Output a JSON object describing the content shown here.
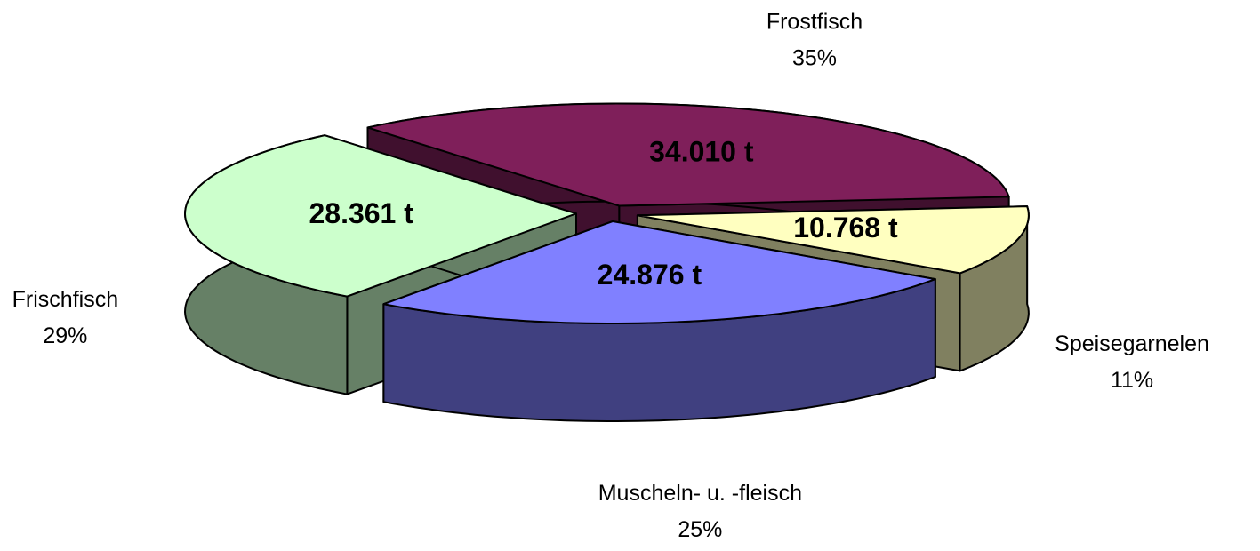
{
  "chart_data": {
    "type": "pie3d",
    "categories": [
      "Frostfisch",
      "Speisegarnelen",
      "Muscheln- u. -fleisch",
      "Frischfisch"
    ],
    "values": [
      34010,
      10768,
      24876,
      28361
    ],
    "value_labels": [
      "34.010 t",
      "10.768 t",
      "24.876 t",
      "28.361 t"
    ],
    "percent_labels": [
      "35%",
      "11%",
      "25%",
      "29%"
    ],
    "colors": [
      "#7f1f5a",
      "#ffffc0",
      "#8080ff",
      "#ccffcc"
    ],
    "side_colors": [
      "#40102e",
      "#808060",
      "#404080",
      "#668066"
    ]
  }
}
